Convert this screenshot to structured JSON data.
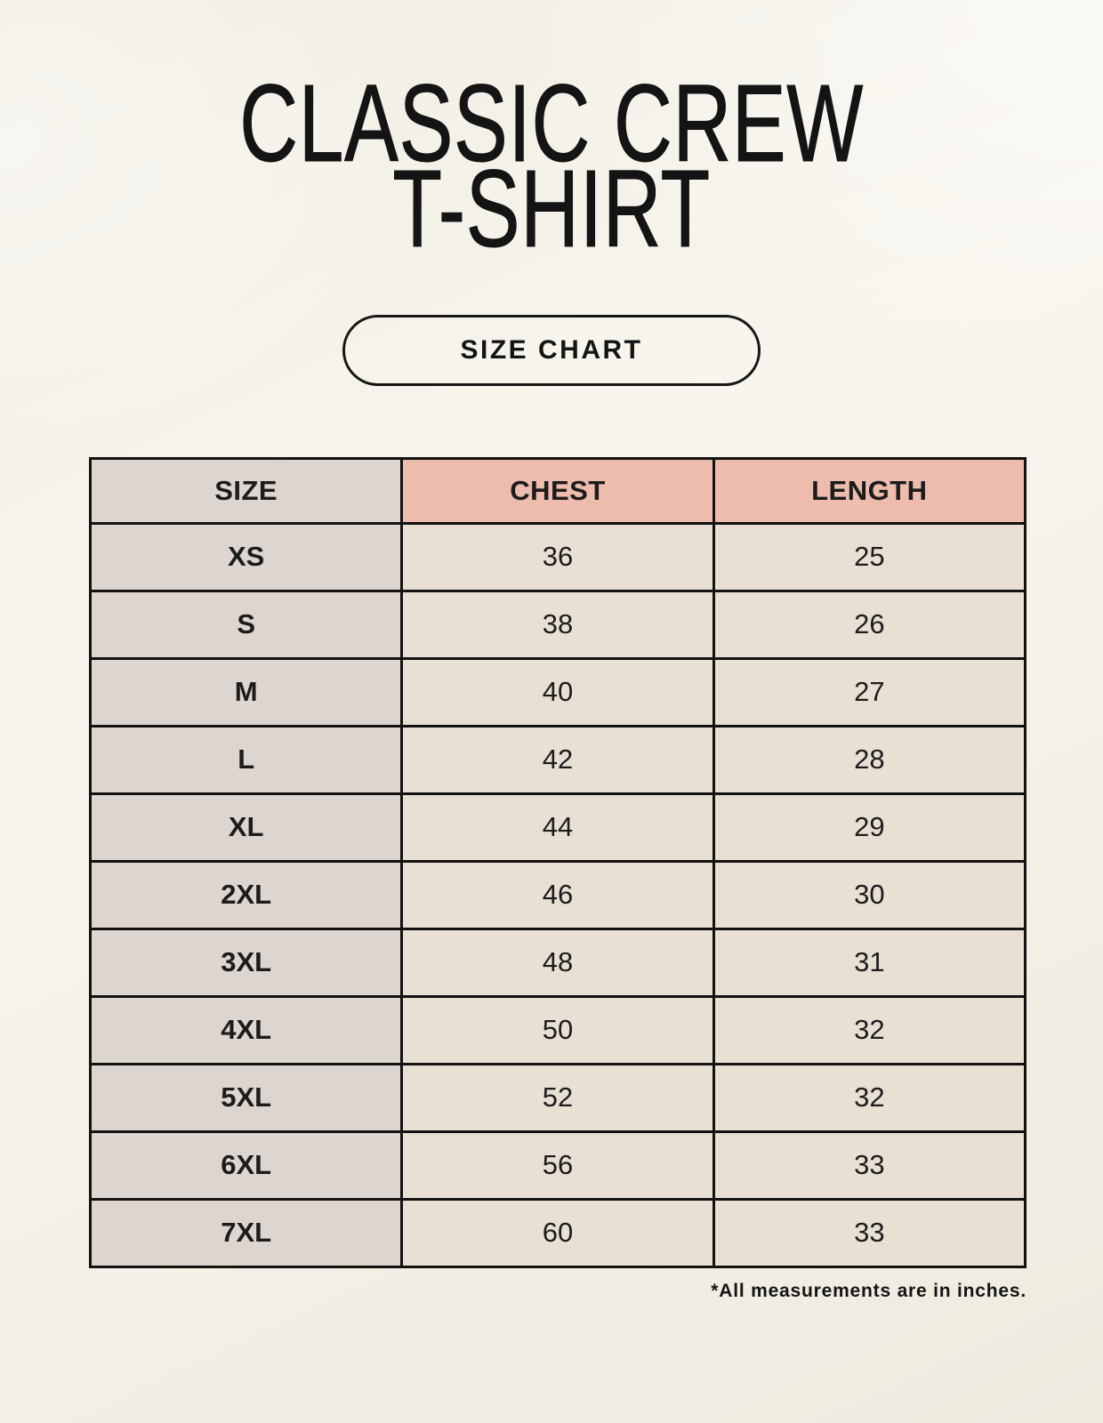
{
  "title": {
    "line1": "CLASSIC CREW",
    "line2": "T-SHIRT"
  },
  "badge": {
    "label": "SIZE CHART"
  },
  "footnote": "*All measurements are in inches.",
  "colors": {
    "page_background": "#f5f1e8",
    "size_column_bg": "#ddd5cf",
    "header_accent_bg": "#eebcad",
    "value_cell_bg": "#e8e0d3",
    "table_border": "#121212",
    "text": "#1c1c1c"
  },
  "chart_data": {
    "type": "table",
    "title": "CLASSIC CREW T-SHIRT",
    "subtitle": "SIZE CHART",
    "units": "inches",
    "columns": [
      "SIZE",
      "CHEST",
      "LENGTH"
    ],
    "rows": [
      {
        "size": "XS",
        "chest": 36,
        "length": 25
      },
      {
        "size": "S",
        "chest": 38,
        "length": 26
      },
      {
        "size": "M",
        "chest": 40,
        "length": 27
      },
      {
        "size": "L",
        "chest": 42,
        "length": 28
      },
      {
        "size": "XL",
        "chest": 44,
        "length": 29
      },
      {
        "size": "2XL",
        "chest": 46,
        "length": 30
      },
      {
        "size": "3XL",
        "chest": 48,
        "length": 31
      },
      {
        "size": "4XL",
        "chest": 50,
        "length": 32
      },
      {
        "size": "5XL",
        "chest": 52,
        "length": 32
      },
      {
        "size": "6XL",
        "chest": 56,
        "length": 33
      },
      {
        "size": "7XL",
        "chest": 60,
        "length": 33
      }
    ]
  }
}
